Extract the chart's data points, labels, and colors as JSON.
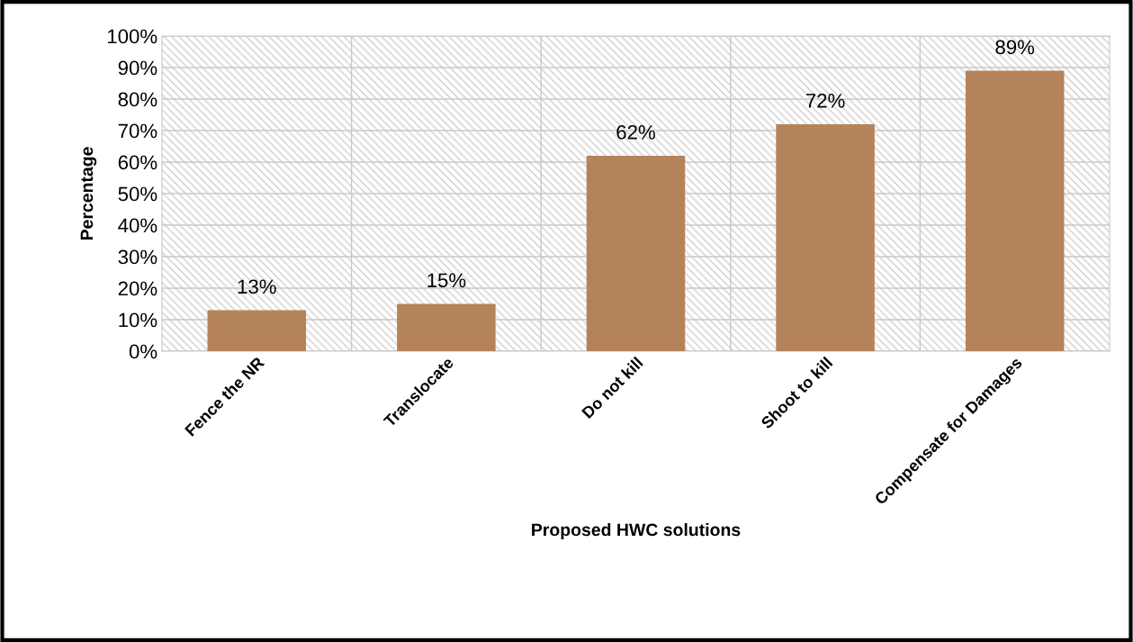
{
  "chart_data": {
    "type": "bar",
    "xlabel": "Proposed HWC solutions",
    "ylabel": "Percentage",
    "categories": [
      "Fence the NR",
      "Translocate",
      "Do not kill",
      "Shoot to kill",
      "Compensate for Damages"
    ],
    "values": [
      13,
      15,
      62,
      72,
      89
    ],
    "value_labels": [
      "13%",
      "15%",
      "62%",
      "72%",
      "89%"
    ],
    "color": "#b5835a",
    "ylim": [
      0,
      100
    ],
    "yticks": [
      {
        "value": 0,
        "label": "0%"
      },
      {
        "value": 10,
        "label": "10%"
      },
      {
        "value": 20,
        "label": "20%"
      },
      {
        "value": 30,
        "label": "30%"
      },
      {
        "value": 40,
        "label": "40%"
      },
      {
        "value": 50,
        "label": "50%"
      },
      {
        "value": 60,
        "label": "60%"
      },
      {
        "value": 70,
        "label": "70%"
      },
      {
        "value": 80,
        "label": "80%"
      },
      {
        "value": 90,
        "label": "90%"
      },
      {
        "value": 100,
        "label": "100%"
      }
    ],
    "grid": true
  }
}
